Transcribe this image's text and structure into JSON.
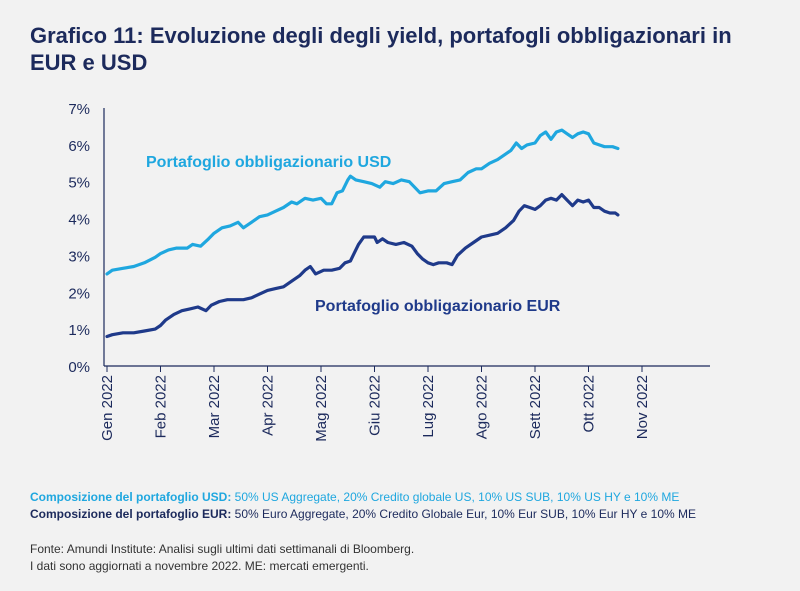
{
  "title": "Grafico 11: Evoluzione degli degli yield, portafogli obbligazionari in EUR e USD",
  "chart_data": {
    "type": "line",
    "ylim": [
      0,
      7
    ],
    "y_ticks": [
      "0%",
      "1%",
      "2%",
      "3%",
      "4%",
      "5%",
      "6%",
      "7%"
    ],
    "x_ticks": [
      "Gen 2022",
      "Feb 2022",
      "Mar 2022",
      "Apr 2022",
      "Mag 2022",
      "Giu 2022",
      "Lug 2022",
      "Ago 2022",
      "Sett 2022",
      "Ott 2022",
      "Nov 2022"
    ],
    "series": [
      {
        "name": "Portafoglio obbligazionario USD",
        "color": "#1fa7df",
        "points": [
          [
            0,
            2.5
          ],
          [
            0.1,
            2.6
          ],
          [
            0.3,
            2.65
          ],
          [
            0.5,
            2.7
          ],
          [
            0.7,
            2.8
          ],
          [
            0.9,
            2.95
          ],
          [
            1.0,
            3.05
          ],
          [
            1.15,
            3.15
          ],
          [
            1.3,
            3.2
          ],
          [
            1.5,
            3.2
          ],
          [
            1.6,
            3.3
          ],
          [
            1.75,
            3.25
          ],
          [
            1.9,
            3.45
          ],
          [
            2.0,
            3.6
          ],
          [
            2.15,
            3.75
          ],
          [
            2.3,
            3.8
          ],
          [
            2.45,
            3.9
          ],
          [
            2.55,
            3.75
          ],
          [
            2.7,
            3.9
          ],
          [
            2.85,
            4.05
          ],
          [
            3.0,
            4.1
          ],
          [
            3.15,
            4.2
          ],
          [
            3.3,
            4.3
          ],
          [
            3.45,
            4.45
          ],
          [
            3.55,
            4.4
          ],
          [
            3.7,
            4.55
          ],
          [
            3.85,
            4.5
          ],
          [
            4.0,
            4.55
          ],
          [
            4.1,
            4.4
          ],
          [
            4.2,
            4.4
          ],
          [
            4.3,
            4.7
          ],
          [
            4.4,
            4.75
          ],
          [
            4.5,
            5.05
          ],
          [
            4.55,
            5.15
          ],
          [
            4.65,
            5.05
          ],
          [
            4.8,
            5.0
          ],
          [
            4.95,
            4.95
          ],
          [
            5.1,
            4.85
          ],
          [
            5.2,
            5.0
          ],
          [
            5.35,
            4.95
          ],
          [
            5.5,
            5.05
          ],
          [
            5.65,
            5.0
          ],
          [
            5.75,
            4.85
          ],
          [
            5.85,
            4.7
          ],
          [
            6.0,
            4.75
          ],
          [
            6.15,
            4.75
          ],
          [
            6.3,
            4.95
          ],
          [
            6.45,
            5.0
          ],
          [
            6.6,
            5.05
          ],
          [
            6.75,
            5.25
          ],
          [
            6.9,
            5.35
          ],
          [
            7.0,
            5.35
          ],
          [
            7.15,
            5.5
          ],
          [
            7.3,
            5.6
          ],
          [
            7.45,
            5.75
          ],
          [
            7.55,
            5.85
          ],
          [
            7.65,
            6.05
          ],
          [
            7.75,
            5.9
          ],
          [
            7.85,
            6.0
          ],
          [
            8.0,
            6.05
          ],
          [
            8.1,
            6.25
          ],
          [
            8.2,
            6.35
          ],
          [
            8.3,
            6.15
          ],
          [
            8.4,
            6.35
          ],
          [
            8.5,
            6.4
          ],
          [
            8.6,
            6.3
          ],
          [
            8.7,
            6.2
          ],
          [
            8.8,
            6.3
          ],
          [
            8.9,
            6.35
          ],
          [
            9.0,
            6.3
          ],
          [
            9.1,
            6.05
          ],
          [
            9.2,
            6.0
          ],
          [
            9.3,
            5.95
          ],
          [
            9.45,
            5.95
          ],
          [
            9.55,
            5.9
          ]
        ]
      },
      {
        "name": "Portafoglio obbligazionario EUR",
        "color": "#1f3a8a",
        "points": [
          [
            0,
            0.8
          ],
          [
            0.1,
            0.85
          ],
          [
            0.3,
            0.9
          ],
          [
            0.5,
            0.9
          ],
          [
            0.7,
            0.95
          ],
          [
            0.9,
            1.0
          ],
          [
            1.0,
            1.1
          ],
          [
            1.1,
            1.25
          ],
          [
            1.25,
            1.4
          ],
          [
            1.4,
            1.5
          ],
          [
            1.55,
            1.55
          ],
          [
            1.7,
            1.6
          ],
          [
            1.85,
            1.5
          ],
          [
            1.95,
            1.65
          ],
          [
            2.1,
            1.75
          ],
          [
            2.25,
            1.8
          ],
          [
            2.4,
            1.8
          ],
          [
            2.55,
            1.8
          ],
          [
            2.7,
            1.85
          ],
          [
            2.85,
            1.95
          ],
          [
            3.0,
            2.05
          ],
          [
            3.15,
            2.1
          ],
          [
            3.3,
            2.15
          ],
          [
            3.45,
            2.3
          ],
          [
            3.6,
            2.45
          ],
          [
            3.7,
            2.6
          ],
          [
            3.8,
            2.7
          ],
          [
            3.9,
            2.5
          ],
          [
            4.05,
            2.6
          ],
          [
            4.2,
            2.6
          ],
          [
            4.35,
            2.65
          ],
          [
            4.45,
            2.8
          ],
          [
            4.55,
            2.85
          ],
          [
            4.6,
            3.0
          ],
          [
            4.7,
            3.3
          ],
          [
            4.8,
            3.5
          ],
          [
            4.9,
            3.5
          ],
          [
            5.0,
            3.5
          ],
          [
            5.05,
            3.35
          ],
          [
            5.15,
            3.45
          ],
          [
            5.25,
            3.35
          ],
          [
            5.4,
            3.3
          ],
          [
            5.55,
            3.35
          ],
          [
            5.7,
            3.25
          ],
          [
            5.8,
            3.05
          ],
          [
            5.9,
            2.9
          ],
          [
            6.0,
            2.8
          ],
          [
            6.1,
            2.75
          ],
          [
            6.2,
            2.8
          ],
          [
            6.35,
            2.8
          ],
          [
            6.45,
            2.75
          ],
          [
            6.55,
            3.0
          ],
          [
            6.7,
            3.2
          ],
          [
            6.85,
            3.35
          ],
          [
            7.0,
            3.5
          ],
          [
            7.15,
            3.55
          ],
          [
            7.3,
            3.6
          ],
          [
            7.45,
            3.75
          ],
          [
            7.6,
            3.95
          ],
          [
            7.7,
            4.2
          ],
          [
            7.8,
            4.35
          ],
          [
            7.9,
            4.3
          ],
          [
            8.0,
            4.25
          ],
          [
            8.1,
            4.35
          ],
          [
            8.2,
            4.5
          ],
          [
            8.3,
            4.55
          ],
          [
            8.4,
            4.5
          ],
          [
            8.5,
            4.65
          ],
          [
            8.6,
            4.5
          ],
          [
            8.7,
            4.35
          ],
          [
            8.8,
            4.5
          ],
          [
            8.9,
            4.45
          ],
          [
            9.0,
            4.5
          ],
          [
            9.1,
            4.3
          ],
          [
            9.2,
            4.3
          ],
          [
            9.3,
            4.2
          ],
          [
            9.4,
            4.15
          ],
          [
            9.5,
            4.15
          ],
          [
            9.55,
            4.1
          ]
        ]
      }
    ],
    "labels": {
      "usd": "Portafoglio obbligazionario USD",
      "eur": "Portafoglio obbligazionario EUR"
    }
  },
  "notes": {
    "usd_bold": "Composizione del portafoglio USD:",
    "usd_text": " 50% US Aggregate, 20% Credito globale US, 10% US SUB, 10% US HY e 10% ME",
    "eur_bold": "Composizione del portafoglio EUR:",
    "eur_text": " 50% Euro Aggregate, 20% Credito Globale Eur, 10% Eur SUB, 10% Eur HY e 10% ME"
  },
  "source": {
    "line1": "Fonte: Amundi Institute: Analisi sugli ultimi dati settimanali di Bloomberg.",
    "line2": "I dati sono aggiornati a novembre 2022. ME: mercati emergenti."
  },
  "colors": {
    "usd": "#1fa7df",
    "eur": "#1f3a8a",
    "text": "#1c2a5c",
    "background": "#f2f2f2"
  }
}
